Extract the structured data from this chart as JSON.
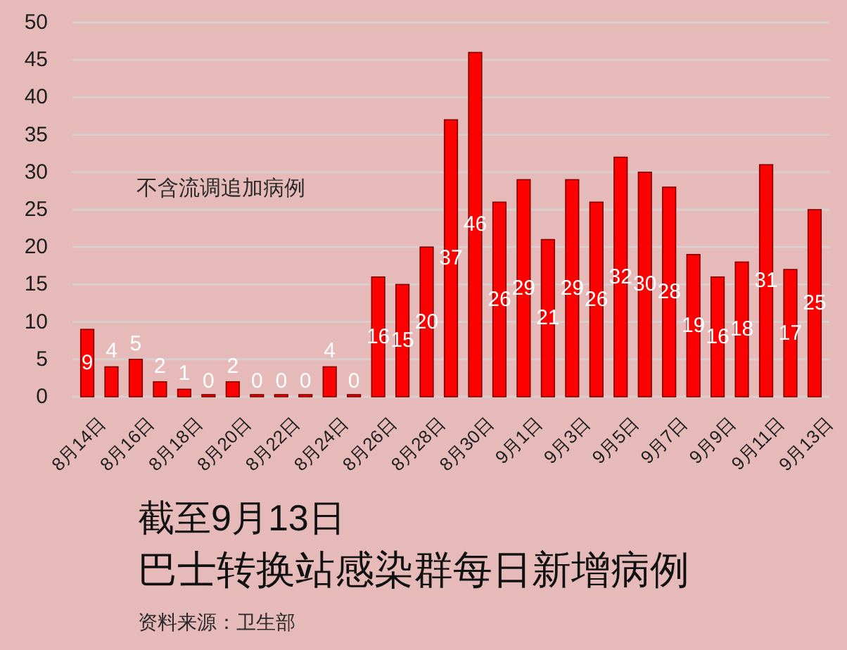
{
  "chart_data": {
    "type": "bar",
    "title": "截至9月13日",
    "subtitle": "巴士转换站感染群每日新增病例",
    "categories": [
      "8月14日",
      null,
      "8月16日",
      null,
      "8月18日",
      null,
      "8月20日",
      null,
      "8月22日",
      null,
      "8月24日",
      null,
      "8月26日",
      null,
      "8月28日",
      null,
      "8月30日",
      null,
      "9月1日",
      null,
      "9月3日",
      null,
      "9月5日",
      null,
      "9月7日",
      null,
      "9月9日",
      null,
      "9月11日",
      null,
      "9月13日"
    ],
    "values": [
      9,
      4,
      5,
      2,
      1,
      0,
      2,
      0,
      0,
      0,
      4,
      0,
      16,
      15,
      20,
      37,
      46,
      26,
      29,
      21,
      29,
      26,
      32,
      30,
      28,
      19,
      16,
      18,
      31,
      17,
      25
    ],
    "color": "#ff0000",
    "ylim": [
      0,
      50
    ],
    "yticks": [
      0,
      5,
      10,
      15,
      20,
      25,
      30,
      35,
      40,
      45,
      50
    ],
    "grid": "y",
    "data_labels": true,
    "annotations": [
      "不含流调追加病例",
      "资料来源：卫生部"
    ]
  }
}
